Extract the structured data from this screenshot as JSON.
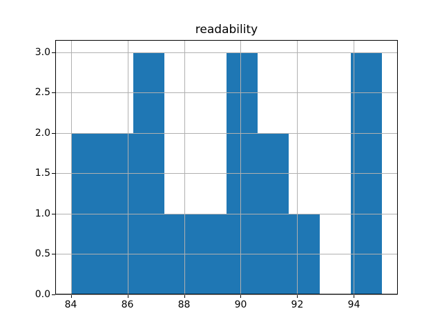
{
  "chart_data": {
    "type": "bar",
    "subtype": "histogram",
    "title": "readability",
    "xlabel": "",
    "ylabel": "",
    "bin_edges": [
      84.0,
      85.1,
      86.2,
      87.3,
      88.4,
      89.5,
      90.6,
      91.7,
      92.8,
      93.9,
      95.0
    ],
    "counts": [
      2,
      2,
      3,
      1,
      1,
      3,
      2,
      1,
      0,
      3
    ],
    "xlim": [
      83.45,
      95.55
    ],
    "ylim": [
      0,
      3.15
    ],
    "xticks": [
      84,
      86,
      88,
      90,
      92,
      94
    ],
    "xtick_labels": [
      "84",
      "86",
      "88",
      "90",
      "92",
      "94"
    ],
    "yticks": [
      0.0,
      0.5,
      1.0,
      1.5,
      2.0,
      2.5,
      3.0
    ],
    "ytick_labels": [
      "0.0",
      "0.5",
      "1.0",
      "1.5",
      "2.0",
      "2.5",
      "3.0"
    ],
    "grid": true,
    "grid_over_bars": true,
    "legend": false,
    "colors": {
      "bar": "#1f77b4",
      "grid": "#b0b0b0",
      "spine": "#000000",
      "background": "#ffffff",
      "text": "#000000"
    }
  }
}
